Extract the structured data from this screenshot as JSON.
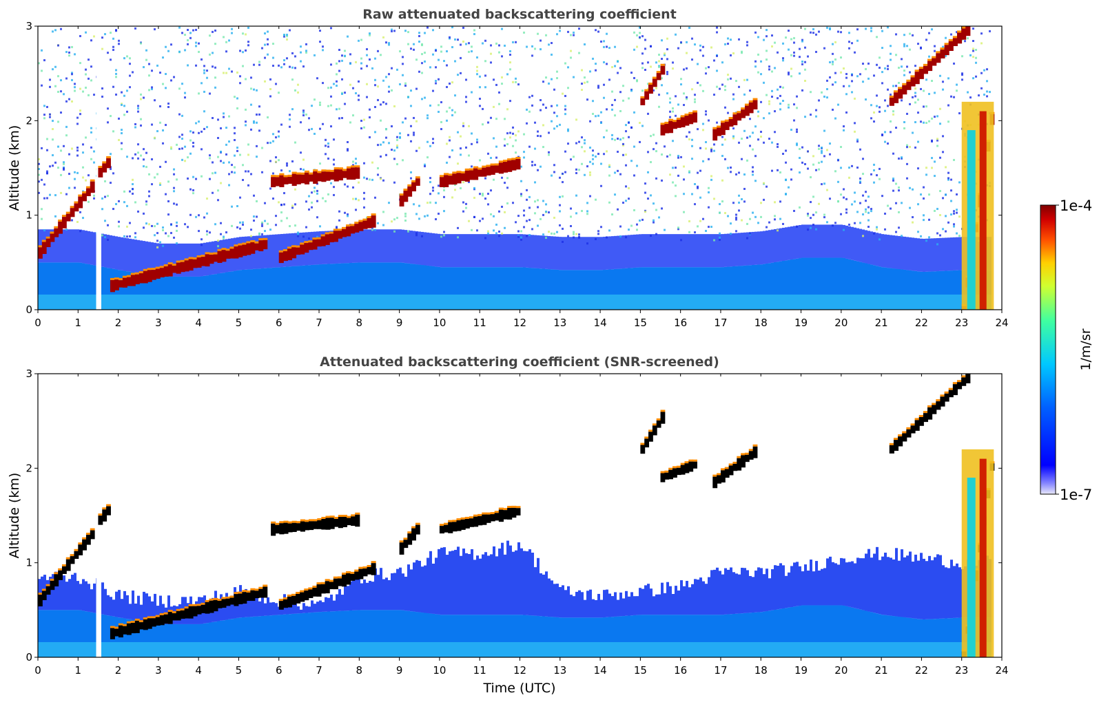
{
  "chart_data": [
    {
      "type": "heatmap",
      "title": "Raw attenuated backscattering coefficient",
      "xlabel": "",
      "ylabel": "Altitude (km)",
      "xlim": [
        0,
        24
      ],
      "ylim": [
        0,
        3
      ],
      "x_ticks": [
        0,
        1,
        2,
        3,
        4,
        5,
        6,
        7,
        8,
        9,
        10,
        11,
        12,
        13,
        14,
        15,
        16,
        17,
        18,
        19,
        20,
        21,
        22,
        23,
        24
      ],
      "y_ticks": [
        0,
        1,
        2,
        3
      ],
      "grid": false,
      "data_gap_hours": [
        1.45,
        1.55
      ],
      "data_end_hour": 23.8,
      "features": {
        "boundary_layer_top_km": [
          [
            0,
            0.5
          ],
          [
            1,
            0.5
          ],
          [
            2,
            0.42
          ],
          [
            3,
            0.35
          ],
          [
            4,
            0.35
          ],
          [
            5,
            0.42
          ],
          [
            6,
            0.45
          ],
          [
            7,
            0.48
          ],
          [
            8,
            0.5
          ],
          [
            9,
            0.5
          ],
          [
            10,
            0.45
          ],
          [
            11,
            0.45
          ],
          [
            12,
            0.45
          ],
          [
            13,
            0.42
          ],
          [
            14,
            0.42
          ],
          [
            15,
            0.45
          ],
          [
            16,
            0.45
          ],
          [
            17,
            0.45
          ],
          [
            18,
            0.48
          ],
          [
            19,
            0.55
          ],
          [
            20,
            0.55
          ],
          [
            21,
            0.45
          ],
          [
            22,
            0.4
          ],
          [
            23,
            0.42
          ]
        ],
        "cloud_layers_km": [
          {
            "x": [
              0,
              1.4
            ],
            "y": [
              0.6,
              1.35
            ]
          },
          {
            "x": [
              1.5,
              1.8
            ],
            "y": [
              1.45,
              1.6
            ]
          },
          {
            "x": [
              1.8,
              5.7
            ],
            "y": [
              0.25,
              0.7
            ]
          },
          {
            "x": [
              5.8,
              8.0
            ],
            "y": [
              1.35,
              1.45
            ]
          },
          {
            "x": [
              6.0,
              8.4
            ],
            "y": [
              0.55,
              0.95
            ]
          },
          {
            "x": [
              9.0,
              9.5
            ],
            "y": [
              1.15,
              1.4
            ]
          },
          {
            "x": [
              10.0,
              12.0
            ],
            "y": [
              1.35,
              1.55
            ]
          },
          {
            "x": [
              15.0,
              15.6
            ],
            "y": [
              2.2,
              2.6
            ]
          },
          {
            "x": [
              15.5,
              16.4
            ],
            "y": [
              1.9,
              2.05
            ]
          },
          {
            "x": [
              16.8,
              17.9
            ],
            "y": [
              1.85,
              2.2
            ]
          },
          {
            "x": [
              21.2,
              23.2
            ],
            "y": [
              2.2,
              3.0
            ]
          },
          {
            "x": [
              23.0,
              23.8
            ],
            "y": [
              0.0,
              2.3
            ]
          }
        ]
      }
    },
    {
      "type": "heatmap",
      "title": "Attenuated backscattering coefficient (SNR-screened)",
      "xlabel": "Time (UTC)",
      "ylabel": "Altitude (km)",
      "xlim": [
        0,
        24
      ],
      "ylim": [
        0,
        3
      ],
      "x_ticks": [
        0,
        1,
        2,
        3,
        4,
        5,
        6,
        7,
        8,
        9,
        10,
        11,
        12,
        13,
        14,
        15,
        16,
        17,
        18,
        19,
        20,
        21,
        22,
        23,
        24
      ],
      "y_ticks": [
        0,
        1,
        2,
        3
      ],
      "grid": false,
      "screened_signal_top_km": [
        [
          0,
          0.85
        ],
        [
          1,
          0.85
        ],
        [
          2,
          0.65
        ],
        [
          3,
          0.6
        ],
        [
          4,
          0.6
        ],
        [
          5,
          0.7
        ],
        [
          6,
          0.6
        ],
        [
          7,
          0.55
        ],
        [
          8,
          0.85
        ],
        [
          9,
          0.9
        ],
        [
          10,
          1.1
        ],
        [
          11,
          1.1
        ],
        [
          12,
          1.2
        ],
        [
          13,
          0.7
        ],
        [
          14,
          0.65
        ],
        [
          15,
          0.7
        ],
        [
          16,
          0.75
        ],
        [
          17,
          0.9
        ],
        [
          18,
          0.9
        ],
        [
          19,
          0.95
        ],
        [
          20,
          1.05
        ],
        [
          21,
          1.1
        ],
        [
          22,
          1.05
        ],
        [
          23,
          1.0
        ]
      ]
    }
  ],
  "colorbar": {
    "label": "1/m/sr",
    "min_label": "1e-7",
    "max_label": "1e-4",
    "scale": "log",
    "range": [
      1e-07,
      0.0001
    ],
    "colormap": [
      "#e8e8f8",
      "#0000ff",
      "#00c0ff",
      "#40ff90",
      "#ffff00",
      "#ff7000",
      "#ff0000",
      "#800000"
    ]
  }
}
